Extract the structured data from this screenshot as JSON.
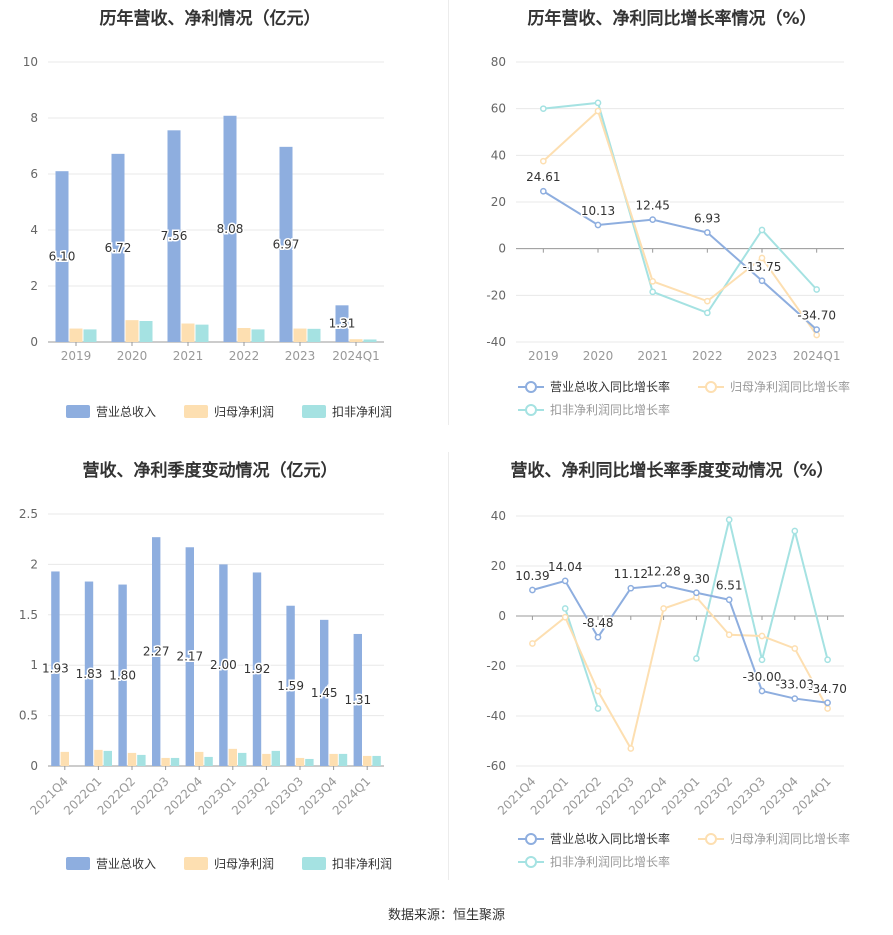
{
  "footer": {
    "source": "数据来源：恒生聚源"
  },
  "chart_data": [
    {
      "id": "c1",
      "type": "bar",
      "title": "历年营收、净利情况（亿元）",
      "categories": [
        "2019",
        "2020",
        "2021",
        "2022",
        "2023",
        "2024Q1"
      ],
      "series": [
        {
          "name": "营业总收入",
          "values": [
            6.1,
            6.72,
            7.56,
            8.08,
            6.97,
            1.31
          ],
          "color": "#8eaedf"
        },
        {
          "name": "归母净利润",
          "values": [
            0.48,
            0.78,
            0.66,
            0.5,
            0.48,
            0.1
          ],
          "color": "#fddfb1"
        },
        {
          "name": "扣非净利润",
          "values": [
            0.45,
            0.75,
            0.62,
            0.45,
            0.47,
            0.09
          ],
          "color": "#a5e2e2"
        }
      ],
      "labels": [
        "6.10",
        "6.72",
        "7.56",
        "8.08",
        "6.97",
        "1.31"
      ],
      "ylim": [
        0,
        10
      ],
      "yticks": [
        "0",
        "2",
        "4",
        "6",
        "8",
        "10"
      ]
    },
    {
      "id": "c2",
      "type": "line",
      "title": "历年营收、净利同比增长率情况（%）",
      "categories": [
        "2019",
        "2020",
        "2021",
        "2022",
        "2023",
        "2024Q1"
      ],
      "series": [
        {
          "name": "营业总收入同比增长率",
          "values": [
            24.61,
            10.13,
            12.45,
            6.93,
            -13.75,
            -34.7
          ],
          "color": "#8eaedf"
        },
        {
          "name": "归母净利润同比增长率",
          "values": [
            37.5,
            59.0,
            -14.0,
            -22.5,
            -4.0,
            -37.0
          ],
          "color": "#fddfb1"
        },
        {
          "name": "扣非净利润同比增长率",
          "values": [
            60.0,
            62.5,
            -18.5,
            -27.5,
            8.0,
            -17.5
          ],
          "color": "#a5e2e2"
        }
      ],
      "labels": [
        "24.61",
        "10.13",
        "12.45",
        "6.93",
        "-13.75",
        "-34.70"
      ],
      "ylim": [
        -40,
        80
      ],
      "yticks": [
        "-40",
        "-20",
        "0",
        "20",
        "40",
        "60",
        "80"
      ]
    },
    {
      "id": "c3",
      "type": "bar",
      "title": "营收、净利季度变动情况（亿元）",
      "categories": [
        "2021Q4",
        "2022Q1",
        "2022Q2",
        "2022Q3",
        "2022Q4",
        "2023Q1",
        "2023Q2",
        "2023Q3",
        "2023Q4",
        "2024Q1"
      ],
      "series": [
        {
          "name": "营业总收入",
          "values": [
            1.93,
            1.83,
            1.8,
            2.27,
            2.17,
            2.0,
            1.92,
            1.59,
            1.45,
            1.31
          ],
          "color": "#8eaedf"
        },
        {
          "name": "归母净利润",
          "values": [
            0.14,
            0.16,
            0.13,
            0.08,
            0.14,
            0.17,
            0.12,
            0.08,
            0.12,
            0.1
          ],
          "color": "#fddfb1"
        },
        {
          "name": "扣非净利润",
          "values": [
            0.0,
            0.15,
            0.11,
            0.08,
            0.09,
            0.13,
            0.15,
            0.07,
            0.12,
            0.1
          ],
          "color": "#a5e2e2"
        }
      ],
      "labels": [
        "1.93",
        "1.83",
        "1.80",
        "2.27",
        "2.17",
        "2.00",
        "1.92",
        "1.59",
        "1.45",
        "1.31"
      ],
      "ylim": [
        0,
        2.5
      ],
      "yticks": [
        "0",
        "0.5",
        "1",
        "1.5",
        "2",
        "2.5"
      ]
    },
    {
      "id": "c4",
      "type": "line",
      "title": "营收、净利同比增长率季度变动情况（%）",
      "categories": [
        "2021Q4",
        "2022Q1",
        "2022Q2",
        "2022Q3",
        "2022Q4",
        "2023Q1",
        "2023Q2",
        "2023Q3",
        "2023Q4",
        "2024Q1"
      ],
      "series": [
        {
          "name": "营业总收入同比增长率",
          "values": [
            10.39,
            14.04,
            -8.48,
            11.12,
            12.28,
            9.3,
            6.51,
            -30.0,
            -33.03,
            -34.7
          ],
          "color": "#8eaedf"
        },
        {
          "name": "归母净利润同比增长率",
          "values": [
            -11.0,
            -0.5,
            -30.0,
            -53.0,
            3.0,
            7.5,
            -7.5,
            -8.0,
            -13.0,
            -37.0
          ],
          "color": "#fddfb1"
        },
        {
          "name": "扣非净利润同比增长率",
          "values": [
            null,
            3.0,
            -37.0,
            null,
            null,
            -17.0,
            38.5,
            -17.5,
            34.0,
            -17.5
          ],
          "color": "#a5e2e2"
        }
      ],
      "labels": [
        "10.39",
        "14.04",
        "-8.48",
        "11.12",
        "12.28",
        "9.30",
        "6.51",
        "-30.00",
        "-33.03",
        "-34.70"
      ],
      "ylim": [
        -60,
        40
      ],
      "yticks": [
        "-60",
        "-40",
        "-20",
        "0",
        "20",
        "40"
      ]
    }
  ]
}
